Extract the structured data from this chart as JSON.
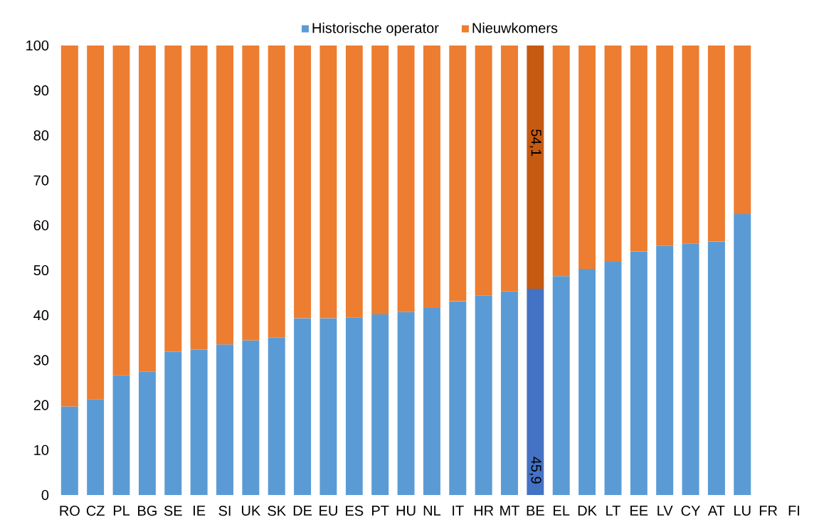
{
  "chart_data": {
    "type": "bar",
    "stacked": true,
    "legend": "top",
    "categories": [
      "RO",
      "CZ",
      "PL",
      "BG",
      "SE",
      "IE",
      "SI",
      "UK",
      "SK",
      "DE",
      "EU",
      "ES",
      "PT",
      "HU",
      "NL",
      "IT",
      "HR",
      "MT",
      "BE",
      "EL",
      "DK",
      "LT",
      "EE",
      "LV",
      "CY",
      "AT",
      "LU",
      "FR",
      "FI"
    ],
    "ylim": [
      0,
      100
    ],
    "yticks": [
      0,
      10,
      20,
      30,
      40,
      50,
      60,
      70,
      80,
      90,
      100
    ],
    "series": [
      {
        "name": "Historische operator",
        "color": "#5b9bd5",
        "colors": [
          "#5b9bd5",
          "#5b9bd5",
          "#5b9bd5",
          "#5b9bd5",
          "#5b9bd5",
          "#5b9bd5",
          "#5b9bd5",
          "#5b9bd5",
          "#5b9bd5",
          "#5b9bd5",
          "#5b9bd5",
          "#5b9bd5",
          "#5b9bd5",
          "#5b9bd5",
          "#5b9bd5",
          "#5b9bd5",
          "#5b9bd5",
          "#5b9bd5",
          "#4472c4",
          "#5b9bd5",
          "#5b9bd5",
          "#5b9bd5",
          "#5b9bd5",
          "#5b9bd5",
          "#5b9bd5",
          "#5b9bd5",
          "#5b9bd5",
          "#5b9bd5",
          "#5b9bd5"
        ],
        "values": [
          19.7,
          21.3,
          26.6,
          27.4,
          31.9,
          32.3,
          33.5,
          34.4,
          35.0,
          39.3,
          39.3,
          39.5,
          40.2,
          40.7,
          41.6,
          43.1,
          44.4,
          45.3,
          45.9,
          48.7,
          50.3,
          51.9,
          54.2,
          55.4,
          55.9,
          56.4,
          62.5,
          null,
          null
        ],
        "value_labels": [
          null,
          null,
          null,
          null,
          null,
          null,
          null,
          null,
          null,
          null,
          null,
          null,
          null,
          null,
          null,
          null,
          null,
          null,
          "45,9",
          null,
          null,
          null,
          null,
          null,
          null,
          null,
          null,
          null,
          null
        ]
      },
      {
        "name": "Nieuwkomers",
        "color": "#ed7d31",
        "colors": [
          "#ed7d31",
          "#ed7d31",
          "#ed7d31",
          "#ed7d31",
          "#ed7d31",
          "#ed7d31",
          "#ed7d31",
          "#ed7d31",
          "#ed7d31",
          "#ed7d31",
          "#ed7d31",
          "#ed7d31",
          "#ed7d31",
          "#ed7d31",
          "#ed7d31",
          "#ed7d31",
          "#ed7d31",
          "#ed7d31",
          "#c55a11",
          "#ed7d31",
          "#ed7d31",
          "#ed7d31",
          "#ed7d31",
          "#ed7d31",
          "#ed7d31",
          "#ed7d31",
          "#ed7d31",
          "#ed7d31",
          "#ed7d31"
        ],
        "values": [
          80.3,
          78.7,
          73.4,
          72.6,
          68.1,
          67.7,
          66.5,
          65.6,
          65.0,
          60.7,
          60.7,
          60.5,
          59.8,
          59.3,
          58.4,
          56.9,
          55.6,
          54.7,
          54.1,
          51.3,
          49.7,
          48.1,
          45.8,
          44.6,
          44.1,
          43.6,
          37.5,
          null,
          null
        ],
        "value_labels": [
          null,
          null,
          null,
          null,
          null,
          null,
          null,
          null,
          null,
          null,
          null,
          null,
          null,
          null,
          null,
          null,
          null,
          null,
          "54,1",
          null,
          null,
          null,
          null,
          null,
          null,
          null,
          null,
          null,
          null
        ]
      }
    ]
  }
}
